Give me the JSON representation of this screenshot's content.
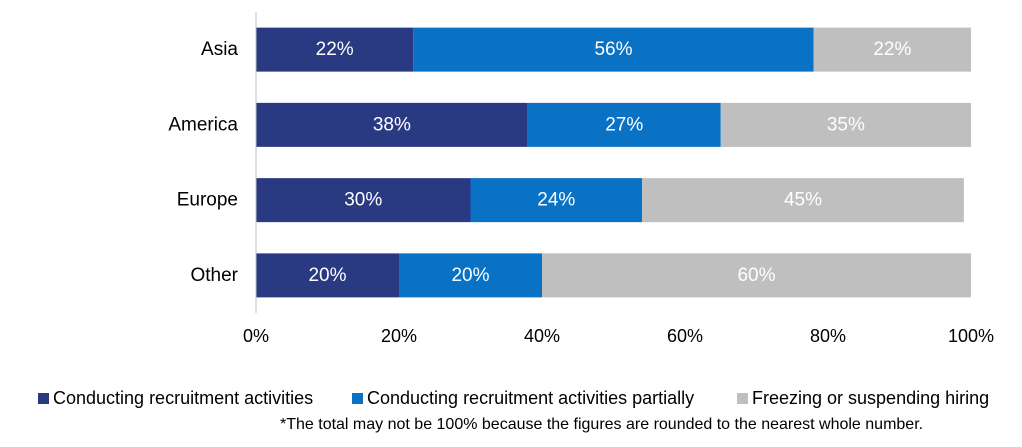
{
  "chart_data": {
    "type": "bar",
    "orientation": "horizontal",
    "stacked": true,
    "categories": [
      "Asia",
      "America",
      "Europe",
      "Other"
    ],
    "series": [
      {
        "name": "Conducting recruitment activities",
        "values": [
          22,
          38,
          30,
          20
        ],
        "labels": [
          "22%",
          "38%",
          "30%",
          "20%"
        ],
        "color": "#2A3A82"
      },
      {
        "name": "Conducting recruitment activities partially",
        "values": [
          56,
          27,
          24,
          20
        ],
        "labels": [
          "56%",
          "27%",
          "24%",
          "20%"
        ],
        "color": "#0A72C4"
      },
      {
        "name": "Freezing or suspending hiring",
        "values": [
          22,
          35,
          45,
          60
        ],
        "labels": [
          "22%",
          "35%",
          "45%",
          "60%"
        ],
        "color": "#BFBFBF"
      }
    ],
    "xlim": [
      0,
      100
    ],
    "xticks": [
      0,
      20,
      40,
      60,
      80,
      100
    ],
    "xtick_labels": [
      "0%",
      "20%",
      "40%",
      "60%",
      "80%",
      "100%"
    ],
    "grid": false,
    "legend_position": "bottom"
  },
  "footnote": "*The total may not be 100% because the figures are rounded to the nearest whole number."
}
